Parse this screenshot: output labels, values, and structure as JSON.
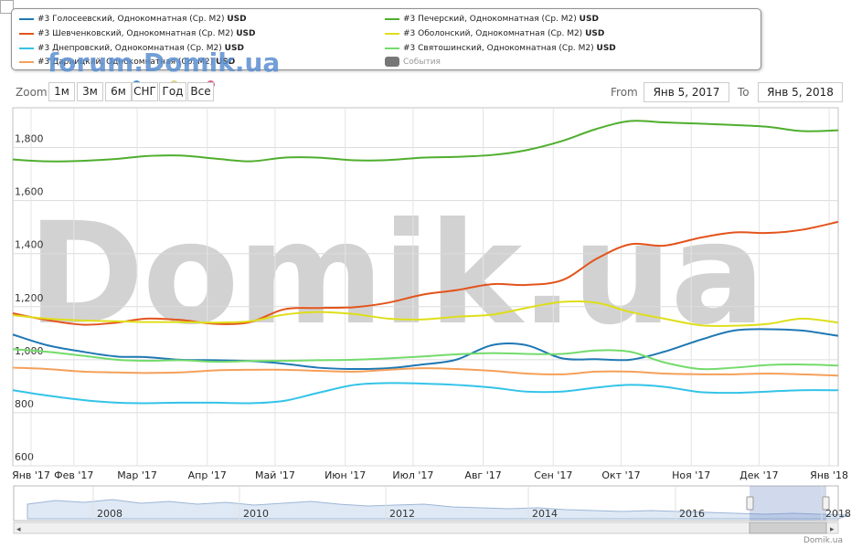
{
  "legend": {
    "items": [
      {
        "label": "#3 Голосеевский, Однокомнатная (Ср. М2)",
        "unit": "USD",
        "color": "#1f78b4"
      },
      {
        "label": "#3 Шевченковский, Однокомнатная (Ср. М2)",
        "unit": "USD",
        "color": "#e3541b"
      },
      {
        "label": "#3 Днепровский, Однокомнатная (Ср. М2)",
        "unit": "USD",
        "color": "#33c3e8"
      },
      {
        "label": "#3 Дарницкий, Однокомнатная (Ср. М2)",
        "unit": "USD",
        "color": "#f5a05a"
      },
      {
        "label": "#3 Печерский, Однокомнатная (Ср. М2)",
        "unit": "USD",
        "color": "#4fae2e"
      },
      {
        "label": "#3 Оболонский, Однокомнатная (Ср. М2)",
        "unit": "USD",
        "color": "#dede1a"
      },
      {
        "label": "#3 Святошинский, Однокомнатная (Ср. М2)",
        "unit": "USD",
        "color": "#73db6b"
      }
    ],
    "events_label": "События"
  },
  "zoom": {
    "label": "Zoom",
    "buttons": [
      "1м",
      "3м",
      "6м",
      "СНГ",
      "Год",
      "Все"
    ]
  },
  "range": {
    "from_label": "From",
    "from_value": "Янв 5, 2017",
    "to_label": "To",
    "to_value": "Янв 5, 2018"
  },
  "watermark": "Domik.ua",
  "forum_watermark": "forum.Domik.ua",
  "credit": "Domik.ua",
  "chart_data": {
    "type": "line",
    "xlabel": "",
    "ylabel": "",
    "ylim": [
      600,
      1950
    ],
    "yticks": [
      600,
      800,
      1000,
      1200,
      1400,
      1600,
      1800
    ],
    "x_tick_labels": [
      "Янв '17",
      "Фев '17",
      "Мар '17",
      "Апр '17",
      "Май '17",
      "Июн '17",
      "Июл '17",
      "Авг '17",
      "Сен '17",
      "Окт '17",
      "Ноя '17",
      "Дек '17",
      "Янв '18"
    ],
    "x": [
      "2017-01-05",
      "2017-01-20",
      "2017-02-05",
      "2017-02-20",
      "2017-03-05",
      "2017-03-20",
      "2017-04-05",
      "2017-04-20",
      "2017-05-05",
      "2017-05-20",
      "2017-06-05",
      "2017-06-20",
      "2017-07-05",
      "2017-07-20",
      "2017-08-05",
      "2017-08-20",
      "2017-09-05",
      "2017-09-20",
      "2017-10-05",
      "2017-10-20",
      "2017-11-05",
      "2017-11-20",
      "2017-12-05",
      "2017-12-20",
      "2018-01-05"
    ],
    "grid": true,
    "series": [
      {
        "name": "#3 Печерский, Однокомнатная (Ср. М2) USD",
        "color": "#4fae2e",
        "values": [
          1755,
          1748,
          1750,
          1757,
          1768,
          1770,
          1758,
          1748,
          1762,
          1762,
          1752,
          1753,
          1762,
          1765,
          1772,
          1790,
          1825,
          1870,
          1900,
          1895,
          1890,
          1885,
          1878,
          1862,
          1865
        ]
      },
      {
        "name": "#3 Шевченковский, Однокомнатная (Ср. М2) USD",
        "color": "#e3541b",
        "values": [
          1175,
          1150,
          1132,
          1140,
          1155,
          1150,
          1135,
          1142,
          1190,
          1195,
          1198,
          1215,
          1245,
          1262,
          1285,
          1282,
          1300,
          1380,
          1435,
          1430,
          1460,
          1480,
          1478,
          1490,
          1520
        ]
      },
      {
        "name": "#3 Оболонский, Однокомнатная (Ср. М2) USD",
        "color": "#dede1a",
        "values": [
          1168,
          1155,
          1148,
          1145,
          1142,
          1142,
          1140,
          1145,
          1170,
          1180,
          1172,
          1155,
          1152,
          1162,
          1170,
          1195,
          1218,
          1215,
          1180,
          1155,
          1130,
          1128,
          1135,
          1155,
          1140
        ]
      },
      {
        "name": "#3 Голосеевский, Однокомнатная (Ср. М2) USD",
        "color": "#1f78b4",
        "values": [
          1095,
          1055,
          1030,
          1012,
          1010,
          1000,
          998,
          995,
          985,
          970,
          965,
          968,
          982,
          1000,
          1055,
          1055,
          1005,
          1002,
          1000,
          1030,
          1075,
          1110,
          1115,
          1110,
          1090
        ]
      },
      {
        "name": "#3 Святошинский, Однокомнатная (Ср. М2) USD",
        "color": "#73db6b",
        "values": [
          1040,
          1030,
          1015,
          1000,
          996,
          998,
          992,
          995,
          996,
          998,
          1000,
          1005,
          1012,
          1020,
          1025,
          1022,
          1022,
          1035,
          1030,
          990,
          965,
          970,
          980,
          982,
          978
        ]
      },
      {
        "name": "#3 Дарницкий, Однокомнатная (Ср. М2) USD",
        "color": "#f5a05a",
        "values": [
          970,
          965,
          955,
          952,
          950,
          952,
          960,
          962,
          962,
          958,
          955,
          962,
          968,
          965,
          958,
          948,
          945,
          955,
          955,
          948,
          945,
          945,
          948,
          945,
          940
        ]
      },
      {
        "name": "#3 Днепровский, Однокомнатная (Ср. М2) USD",
        "color": "#33c3e8",
        "values": [
          885,
          865,
          848,
          838,
          836,
          838,
          838,
          836,
          845,
          875,
          905,
          912,
          910,
          905,
          895,
          880,
          880,
          895,
          905,
          898,
          878,
          875,
          880,
          885,
          885
        ]
      }
    ],
    "navigator": {
      "x_tick_labels": [
        "2008",
        "2010",
        "2012",
        "2014",
        "2016",
        "2018"
      ]
    }
  }
}
